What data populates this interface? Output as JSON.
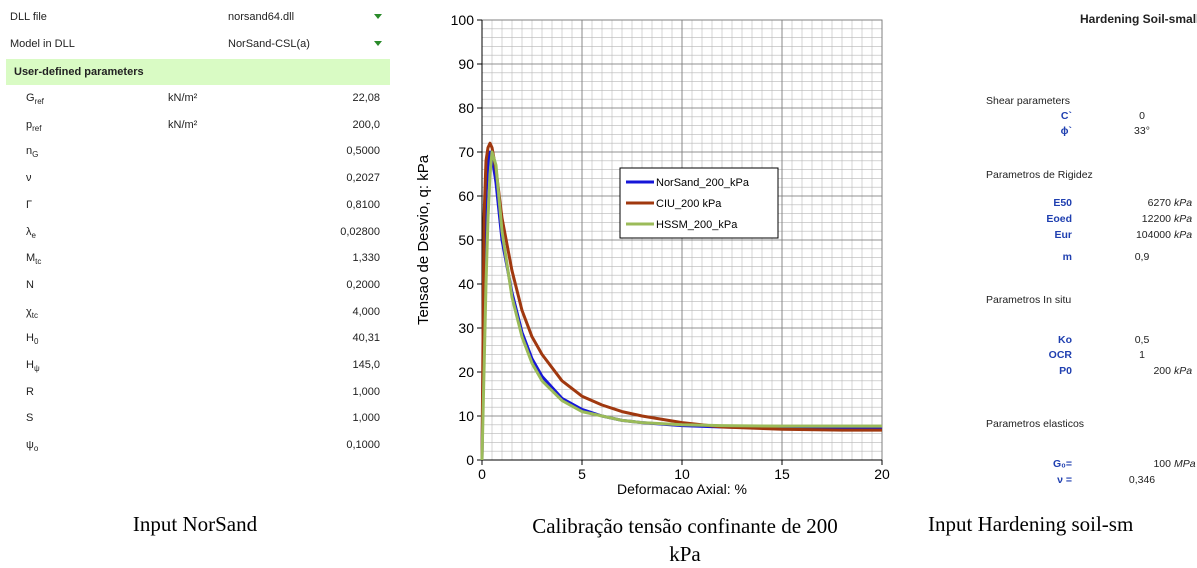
{
  "left_panel": {
    "dll_label": "DLL file",
    "dll_value": "norsand64.dll",
    "model_label": "Model in DLL",
    "model_value": "NorSand-CSL(a)",
    "section": "User-defined parameters",
    "params": [
      {
        "symbol": "G",
        "sub": "ref",
        "unit": "kN/m²",
        "value": "22,08"
      },
      {
        "symbol": "p",
        "sub": "ref",
        "unit": "kN/m²",
        "value": "200,0"
      },
      {
        "symbol": "n",
        "sub": "G",
        "value": "0,5000"
      },
      {
        "symbol": "ν",
        "value": "0,2027"
      },
      {
        "symbol": "Γ",
        "value": "0,8100"
      },
      {
        "symbol": "λ",
        "sub": "e",
        "value": "0,02800"
      },
      {
        "symbol": "M",
        "sub": "tc",
        "value": "1,330"
      },
      {
        "symbol": "N",
        "value": "0,2000"
      },
      {
        "symbol": "χ",
        "sub": "tc",
        "value": "4,000"
      },
      {
        "symbol": "H",
        "sub": "0",
        "value": "40,31"
      },
      {
        "symbol": "H",
        "sub": "ψ",
        "value": "145,0"
      },
      {
        "symbol": "R",
        "value": "1,000"
      },
      {
        "symbol": "S",
        "value": "1,000"
      },
      {
        "symbol": "ψ",
        "sub": "o",
        "value": "0,1000"
      }
    ],
    "caption": "Input NorSand"
  },
  "chart_data": {
    "type": "line",
    "x_label": "Deformacao Axial: %",
    "y_label": "Tensao de Desvio, q: kPa",
    "caption": "Calibração tensão confinante de 200 kPa",
    "x": [
      0,
      0.1,
      0.2,
      0.3,
      0.4,
      0.5,
      0.7,
      1,
      1.5,
      2,
      2.5,
      3,
      4,
      5,
      6,
      7,
      8,
      10,
      12,
      15,
      18,
      20
    ],
    "series": [
      {
        "name": "NorSand_200_kPa",
        "color": "#1616d8",
        "values": [
          0,
          40,
          60,
          67,
          70,
          69,
          63,
          50,
          38,
          29,
          23,
          19,
          14,
          11.5,
          10,
          9,
          8.5,
          7.8,
          7.5,
          7.3,
          7.2,
          7.2
        ]
      },
      {
        "name": "CIU_200 kPa",
        "color": "#a0380f",
        "values": [
          0,
          55,
          68,
          71,
          72,
          71,
          66,
          55,
          43,
          34,
          28,
          24,
          18,
          14.5,
          12.5,
          11,
          10,
          8.5,
          7.5,
          7,
          6.8,
          6.8
        ]
      },
      {
        "name": "HSSM_200_kPa",
        "color": "#9bbb59",
        "values": [
          0,
          20,
          40,
          55,
          65,
          70,
          67,
          52,
          37,
          28,
          22,
          18,
          13.5,
          11,
          10,
          9,
          8.5,
          8,
          7.8,
          7.7,
          7.7,
          7.7
        ]
      }
    ],
    "xlim": [
      0,
      20
    ],
    "xticks": [
      0,
      5,
      10,
      15,
      20
    ],
    "ylim": [
      0,
      100
    ],
    "yticks": [
      0,
      10,
      20,
      30,
      40,
      50,
      60,
      70,
      80,
      90,
      100
    ],
    "grid": true,
    "minor_grid": {
      "x": 0.5,
      "y": 2
    }
  },
  "right_panel": {
    "title": "Hardening Soil-small",
    "sections": [
      {
        "title": "Shear parameters",
        "rows": [
          {
            "name": "C`",
            "value": "0"
          },
          {
            "name": "ϕ`",
            "value": "33°"
          }
        ]
      },
      {
        "title": "Parametros de Rigidez",
        "rows": [
          {
            "name": "E50",
            "value": "6270",
            "unit": "kPa"
          },
          {
            "name": "Eoed",
            "value": "12200",
            "unit": "kPa"
          },
          {
            "name": "Eur",
            "value": "104000",
            "unit": "kPa"
          },
          {
            "name": "m",
            "value": "0,9"
          }
        ]
      },
      {
        "title": "Parametros In situ",
        "rows": [
          {
            "name": "Ko",
            "value": "0,5"
          },
          {
            "name": "OCR",
            "value": "1"
          },
          {
            "name": "P0",
            "value": "200",
            "unit": "kPa"
          }
        ]
      },
      {
        "title": "Parametros elasticos",
        "rows": [
          {
            "name": "G₀=",
            "value": "100",
            "unit": "MPa"
          },
          {
            "name": "ν =",
            "value": "0,346"
          }
        ]
      }
    ],
    "caption": "Input Hardening soil-sm"
  }
}
